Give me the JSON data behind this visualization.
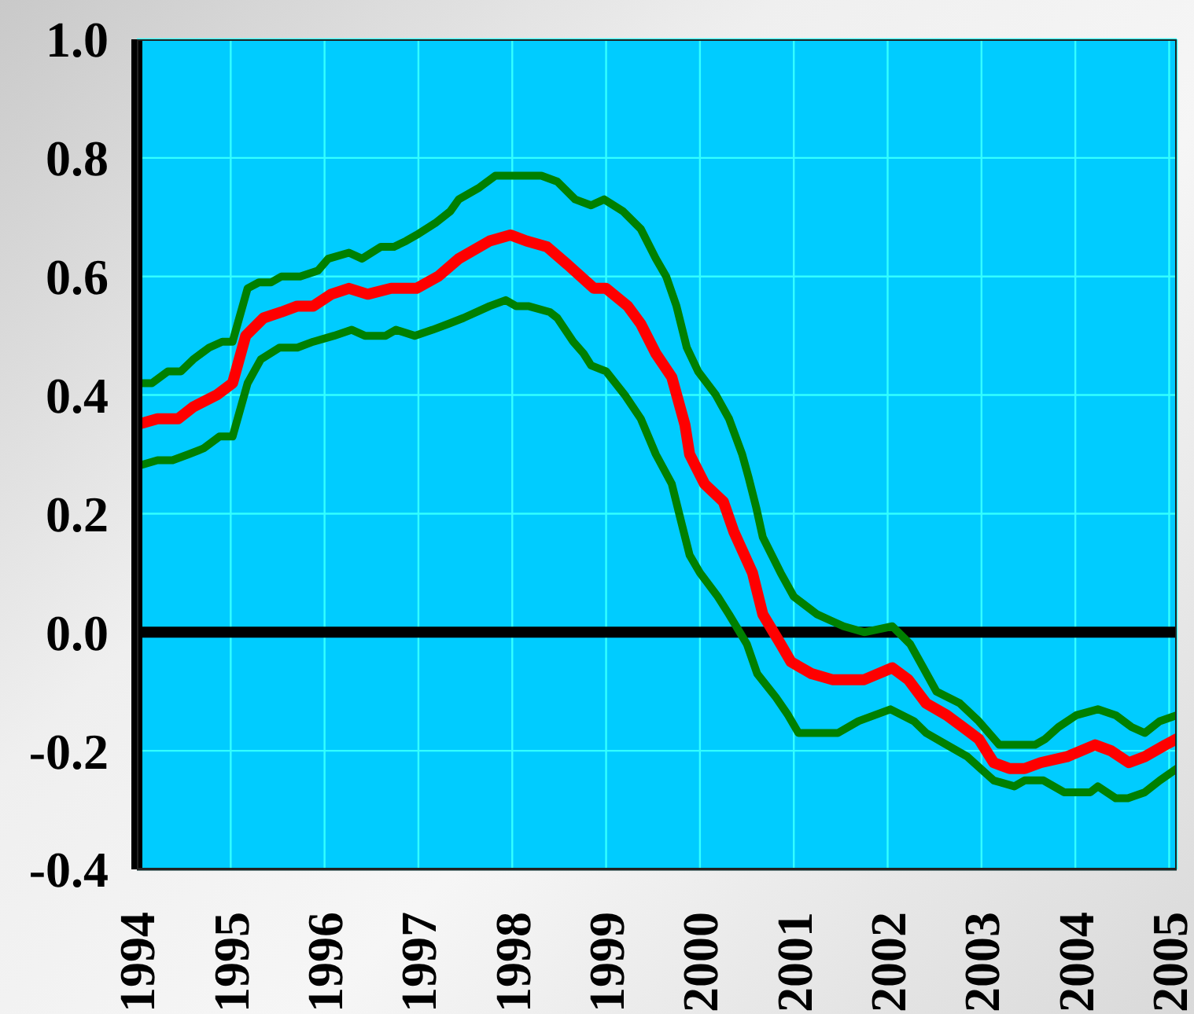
{
  "chart_data": {
    "type": "line",
    "xlim": [
      1994,
      2005.08
    ],
    "xticks": [
      1994,
      1995,
      1996,
      1997,
      1998,
      1999,
      2000,
      2001,
      2002,
      2003,
      2004,
      2005
    ],
    "ylim": [
      -0.4,
      1
    ],
    "yticks": [
      -0.4,
      -0.2,
      {
        "value": 0,
        "label": "0.0"
      },
      0.2,
      0.4,
      0.6,
      0.8,
      {
        "value": 1,
        "label": "1.0"
      }
    ],
    "grid": true,
    "marker": "none",
    "line_style": "solid",
    "ref_lines": [
      {
        "axis": "y",
        "value": 0,
        "color": "#000000"
      }
    ],
    "series": [
      {
        "color": "#008000",
        "x": [
          1994,
          1994.16,
          1994.33,
          1994.47,
          1994.6,
          1994.77,
          1994.91,
          1995.02,
          1995.18,
          1995.3,
          1995.43,
          1995.54,
          1995.74,
          1995.93,
          1996.04,
          1996.26,
          1996.4,
          1996.6,
          1996.74,
          1996.87,
          1996.98,
          1997.18,
          1997.34,
          1997.43,
          1997.65,
          1997.82,
          1998.31,
          1998.48,
          1998.67,
          1998.84,
          1998.98,
          1999.18,
          1999.37,
          1999.53,
          1999.64,
          1999.75,
          1999.86,
          1999.98,
          2000.17,
          2000.31,
          2000.45,
          2000.52,
          2000.6,
          2000.67,
          2000.86,
          2001,
          2001.25,
          2001.39,
          2001.53,
          2001.75,
          2002.05,
          2002.24,
          2002.38,
          2002.52,
          2002.77,
          2002.97,
          2003.19,
          2003.57,
          2003.68,
          2003.82,
          2004.01,
          2004.24,
          2004.43,
          2004.6,
          2004.74,
          2004.9,
          2005.08
        ],
        "values": [
          0.42,
          0.42,
          0.44,
          0.44,
          0.46,
          0.48,
          0.49,
          0.49,
          0.58,
          0.59,
          0.59,
          0.6,
          0.6,
          0.61,
          0.63,
          0.64,
          0.63,
          0.65,
          0.65,
          0.66,
          0.67,
          0.69,
          0.71,
          0.73,
          0.75,
          0.77,
          0.77,
          0.76,
          0.73,
          0.72,
          0.73,
          0.71,
          0.68,
          0.63,
          0.6,
          0.55,
          0.48,
          0.44,
          0.4,
          0.36,
          0.3,
          0.26,
          0.21,
          0.16,
          0.1,
          0.06,
          0.03,
          0.02,
          0.01,
          0,
          0.01,
          -0.02,
          -0.06,
          -0.1,
          -0.12,
          -0.15,
          -0.19,
          -0.19,
          -0.18,
          -0.16,
          -0.14,
          -0.13,
          -0.14,
          -0.16,
          -0.17,
          -0.15,
          -0.14
        ]
      },
      {
        "color": "#008000",
        "x": [
          1994,
          1994.22,
          1994.38,
          1994.55,
          1994.71,
          1994.88,
          1995.02,
          1995.18,
          1995.32,
          1995.52,
          1995.71,
          1995.88,
          1996.1,
          1996.29,
          1996.43,
          1996.65,
          1996.76,
          1996.96,
          1997.15,
          1997.32,
          1997.48,
          1997.76,
          1997.93,
          1998.04,
          1998.17,
          1998.4,
          1998.48,
          1998.65,
          1998.76,
          1998.84,
          1999,
          1999.2,
          1999.37,
          1999.53,
          1999.7,
          1999.81,
          1999.89,
          2000,
          2000.19,
          2000.31,
          2000.5,
          2000.61,
          2000.81,
          2000.94,
          2001.05,
          2001.28,
          2001.47,
          2001.69,
          2001.86,
          2002.03,
          2002.28,
          2002.41,
          2002.63,
          2002.85,
          2003.13,
          2003.35,
          2003.46,
          2003.66,
          2003.88,
          2004.16,
          2004.24,
          2004.43,
          2004.56,
          2004.74,
          2004.9,
          2005.08
        ],
        "values": [
          0.28,
          0.29,
          0.29,
          0.3,
          0.31,
          0.33,
          0.33,
          0.42,
          0.46,
          0.48,
          0.48,
          0.49,
          0.5,
          0.51,
          0.5,
          0.5,
          0.51,
          0.5,
          0.51,
          0.52,
          0.53,
          0.55,
          0.56,
          0.55,
          0.55,
          0.54,
          0.53,
          0.49,
          0.47,
          0.45,
          0.44,
          0.4,
          0.36,
          0.3,
          0.25,
          0.18,
          0.13,
          0.1,
          0.06,
          0.03,
          -0.02,
          -0.07,
          -0.11,
          -0.14,
          -0.17,
          -0.17,
          -0.17,
          -0.15,
          -0.14,
          -0.13,
          -0.15,
          -0.17,
          -0.19,
          -0.21,
          -0.25,
          -0.26,
          -0.25,
          -0.25,
          -0.27,
          -0.27,
          -0.26,
          -0.28,
          -0.28,
          -0.27,
          -0.25,
          -0.23
        ]
      },
      {
        "color": "#ff0000",
        "x": [
          1994,
          1994.22,
          1994.44,
          1994.6,
          1994.85,
          1995.02,
          1995.16,
          1995.35,
          1995.54,
          1995.71,
          1995.88,
          1996.07,
          1996.26,
          1996.46,
          1996.71,
          1996.98,
          1997.21,
          1997.43,
          1997.76,
          1997.98,
          1998.15,
          1998.37,
          1998.59,
          1998.87,
          1999,
          1999.23,
          1999.37,
          1999.53,
          1999.7,
          1999.84,
          1999.89,
          2000.05,
          2000.25,
          2000.36,
          2000.56,
          2000.67,
          2000.86,
          2000.97,
          2001.19,
          2001.41,
          2001.75,
          2002.05,
          2002.22,
          2002.41,
          2002.63,
          2002.8,
          2002.97,
          2003.13,
          2003.3,
          2003.46,
          2003.63,
          2003.91,
          2004.21,
          2004.38,
          2004.57,
          2004.74,
          2004.96,
          2005.08
        ],
        "values": [
          0.35,
          0.36,
          0.36,
          0.38,
          0.4,
          0.42,
          0.5,
          0.53,
          0.54,
          0.55,
          0.55,
          0.57,
          0.58,
          0.57,
          0.58,
          0.58,
          0.6,
          0.63,
          0.66,
          0.67,
          0.66,
          0.65,
          0.62,
          0.58,
          0.58,
          0.55,
          0.52,
          0.47,
          0.43,
          0.35,
          0.3,
          0.25,
          0.22,
          0.17,
          0.1,
          0.03,
          -0.02,
          -0.05,
          -0.07,
          -0.08,
          -0.08,
          -0.06,
          -0.08,
          -0.12,
          -0.14,
          -0.16,
          -0.18,
          -0.22,
          -0.23,
          -0.23,
          -0.22,
          -0.21,
          -0.19,
          -0.2,
          -0.22,
          -0.21,
          -0.19,
          -0.18
        ]
      }
    ]
  }
}
